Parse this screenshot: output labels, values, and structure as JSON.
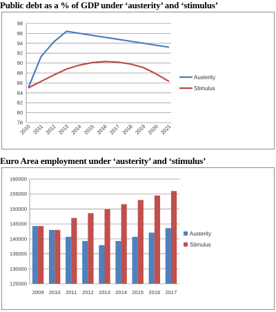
{
  "chart_data": [
    {
      "type": "line",
      "title": "Public debt as a % of GDP under ‘austerity’ and ‘stimulus’",
      "x": [
        "2010",
        "2011",
        "2012",
        "2013",
        "2014",
        "2015",
        "2016",
        "2017",
        "2018",
        "2019",
        "2020",
        "2021"
      ],
      "series": [
        {
          "name": "Austerity",
          "color": "#4a7ebb",
          "values": [
            85.0,
            91.3,
            94.3,
            96.4,
            96.0,
            95.6,
            95.2,
            94.8,
            94.4,
            94.0,
            93.6,
            93.2
          ]
        },
        {
          "name": "Stimulus",
          "color": "#be4b48",
          "values": [
            85.0,
            86.3,
            87.6,
            88.8,
            89.6,
            90.1,
            90.3,
            90.2,
            89.8,
            89.1,
            87.8,
            86.3
          ]
        }
      ],
      "ylim": [
        78,
        98
      ],
      "yticks": [
        78,
        80,
        82,
        84,
        86,
        88,
        90,
        92,
        94,
        96,
        98
      ],
      "grid": true,
      "legend": "right"
    },
    {
      "type": "bar",
      "title": "Euro Area employment under ‘austerity’ and ‘stimulus’",
      "categories": [
        "2009",
        "2010",
        "2011",
        "2012",
        "2013",
        "2014",
        "2015",
        "2016",
        "2017"
      ],
      "series": [
        {
          "name": "Austerity",
          "color": "#4f81bd",
          "values": [
            144300,
            143000,
            140700,
            139300,
            137900,
            139300,
            140700,
            142100,
            143600
          ]
        },
        {
          "name": "Stimulus",
          "color": "#c0504d",
          "values": [
            144300,
            143000,
            147000,
            148600,
            149900,
            151600,
            153000,
            154500,
            156000
          ]
        }
      ],
      "ylim": [
        125000,
        160000
      ],
      "yticks": [
        125000,
        130000,
        135000,
        140000,
        145000,
        150000,
        155000,
        160000
      ],
      "grid": true,
      "legend": "right"
    }
  ]
}
